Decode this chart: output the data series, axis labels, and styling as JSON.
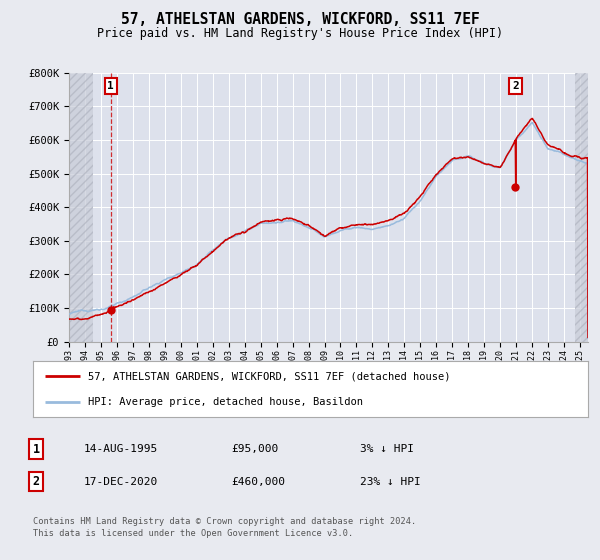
{
  "title": "57, ATHELSTAN GARDENS, WICKFORD, SS11 7EF",
  "subtitle": "Price paid vs. HM Land Registry's House Price Index (HPI)",
  "legend_line1": "57, ATHELSTAN GARDENS, WICKFORD, SS11 7EF (detached house)",
  "legend_line2": "HPI: Average price, detached house, Basildon",
  "sale1_date": "14-AUG-1995",
  "sale1_price": "£95,000",
  "sale1_hpi": "3% ↓ HPI",
  "sale2_date": "17-DEC-2020",
  "sale2_price": "£460,000",
  "sale2_hpi": "23% ↓ HPI",
  "footer": "Contains HM Land Registry data © Crown copyright and database right 2024.\nThis data is licensed under the Open Government Licence v3.0.",
  "bg_color": "#e8eaf0",
  "plot_bg_color": "#dde1ec",
  "grid_color": "#ffffff",
  "hpi_color": "#99bbdd",
  "price_color": "#cc0000",
  "marker_color": "#cc0000",
  "sale1_x": 1995.62,
  "sale1_y": 95000,
  "sale2_x": 2020.96,
  "sale2_y": 460000,
  "ylim": [
    0,
    800000
  ],
  "xlim_start": 1993.0,
  "xlim_end": 2025.5,
  "hatch_left_end": 1994.5,
  "hatch_right_start": 2024.7
}
